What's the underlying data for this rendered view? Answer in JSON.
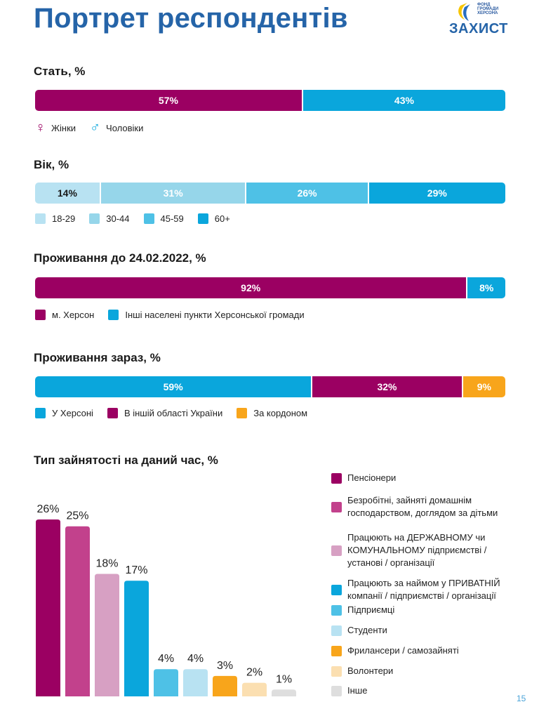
{
  "title": "Портрет респондентів",
  "logo": {
    "small_lines": [
      "ФОНД",
      "ГРОМАДИ",
      "ХЕРСОНА"
    ],
    "main": "ЗАХИСТ"
  },
  "colors": {
    "magenta": "#9b0062",
    "blue": "#0aa6dc",
    "pink": "#c2418c",
    "lightpink": "#d7a0c3",
    "lightblue1": "#b8e2f2",
    "lightblue2": "#96d6ea",
    "midblue": "#4ec1e6",
    "orange": "#f8a51b",
    "peach": "#fbdfb1",
    "grey": "#dedede"
  },
  "page_number": "15",
  "chart_data": [
    {
      "type": "bar",
      "subtype": "stacked-100",
      "title": "Стать, %",
      "series": [
        {
          "name": "Жінки",
          "value": 57,
          "label": "57%",
          "color": "#9b0062"
        },
        {
          "name": "Чоловіки",
          "value": 43,
          "label": "43%",
          "color": "#0aa6dc"
        }
      ]
    },
    {
      "type": "bar",
      "subtype": "stacked-100",
      "title": "Вік, %",
      "series": [
        {
          "name": "18-29",
          "value": 14,
          "label": "14%",
          "color": "#b8e2f2"
        },
        {
          "name": "30-44",
          "value": 31,
          "label": "31%",
          "color": "#96d6ea"
        },
        {
          "name": "45-59",
          "value": 26,
          "label": "26%",
          "color": "#4ec1e6"
        },
        {
          "name": "60+",
          "value": 29,
          "label": "29%",
          "color": "#0aa6dc"
        }
      ]
    },
    {
      "type": "bar",
      "subtype": "stacked-100",
      "title": "Проживання до 24.02.2022, %",
      "series": [
        {
          "name": "м. Херсон",
          "value": 92,
          "label": "92%",
          "color": "#9b0062"
        },
        {
          "name": "Інші населені пункти Херсонської громади",
          "value": 8,
          "label": "8%",
          "color": "#0aa6dc"
        }
      ]
    },
    {
      "type": "bar",
      "subtype": "stacked-100",
      "title": "Проживання зараз, %",
      "series": [
        {
          "name": "У Херсоні",
          "value": 59,
          "label": "59%",
          "color": "#0aa6dc"
        },
        {
          "name": "В іншій області України",
          "value": 32,
          "label": "32%",
          "color": "#9b0062"
        },
        {
          "name": "За кордоном",
          "value": 9,
          "label": "9%",
          "color": "#f8a51b"
        }
      ]
    },
    {
      "type": "bar",
      "title": "Тип зайнятості на даний час, %",
      "ylim": [
        0,
        30
      ],
      "categories": [
        "Пенсіонери",
        "Безробітні, зайняті домашнім господарством, доглядом за дітьми",
        "Працюють на ДЕРЖАВНОМУ чи КОМУНАЛЬНОМУ підприємстві / установі / організації",
        "Працюють за наймом у ПРИВАТНІЙ компанії / підприємстві / організації",
        "Підприємці",
        "Студенти",
        "Фрилансери / самозайняті",
        "Волонтери",
        "Інше"
      ],
      "legend_lines": [
        [
          "Пенсіонери"
        ],
        [
          "Безробітні, зайняті домашнім",
          "господарством, доглядом за дітьми"
        ],
        [
          "Працюють на ДЕРЖАВНОМУ чи",
          "КОМУНАЛЬНОМУ підприємстві /",
          "установі / організації"
        ],
        [
          "Працюють за наймом у ПРИВАТНІЙ",
          "компанії / підприємстві / організації"
        ],
        [
          "Підприємці"
        ],
        [
          "Студенти"
        ],
        [
          "Фрилансери / самозайняті"
        ],
        [
          "Волонтери"
        ],
        [
          "Інше"
        ]
      ],
      "values": [
        26,
        25,
        18,
        17,
        4,
        4,
        3,
        2,
        1
      ],
      "labels": [
        "26%",
        "25%",
        "18%",
        "17%",
        "4%",
        "4%",
        "3%",
        "2%",
        "1%"
      ],
      "colors": [
        "#9b0062",
        "#c2418c",
        "#d7a0c3",
        "#0aa6dc",
        "#4ec1e6",
        "#b8e2f2",
        "#f8a51b",
        "#fbdfb1",
        "#dedede"
      ]
    }
  ]
}
